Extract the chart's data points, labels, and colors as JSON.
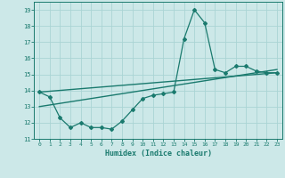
{
  "xlabel": "Humidex (Indice chaleur)",
  "ylabel": "",
  "xlim": [
    -0.5,
    23.5
  ],
  "ylim": [
    11,
    19.5
  ],
  "yticks": [
    11,
    12,
    13,
    14,
    15,
    16,
    17,
    18,
    19
  ],
  "xticks": [
    0,
    1,
    2,
    3,
    4,
    5,
    6,
    7,
    8,
    9,
    10,
    11,
    12,
    13,
    14,
    15,
    16,
    17,
    18,
    19,
    20,
    21,
    22,
    23
  ],
  "bg_color": "#cce8e8",
  "grid_color": "#aad4d4",
  "line_color": "#1a7a6e",
  "line1_x": [
    0,
    1,
    2,
    3,
    4,
    5,
    6,
    7,
    8,
    9,
    10,
    11,
    12,
    13,
    14,
    15,
    16,
    17,
    18,
    19,
    20,
    21,
    22,
    23
  ],
  "line1_y": [
    13.9,
    13.6,
    12.3,
    11.7,
    12.0,
    11.7,
    11.7,
    11.6,
    12.1,
    12.8,
    13.5,
    13.7,
    13.8,
    13.9,
    17.2,
    19.0,
    18.2,
    15.3,
    15.1,
    15.5,
    15.5,
    15.2,
    15.1,
    15.1
  ],
  "line2_x": [
    0,
    23
  ],
  "line2_y": [
    13.9,
    15.1
  ],
  "line3_x": [
    0,
    23
  ],
  "line3_y": [
    13.0,
    15.3
  ]
}
